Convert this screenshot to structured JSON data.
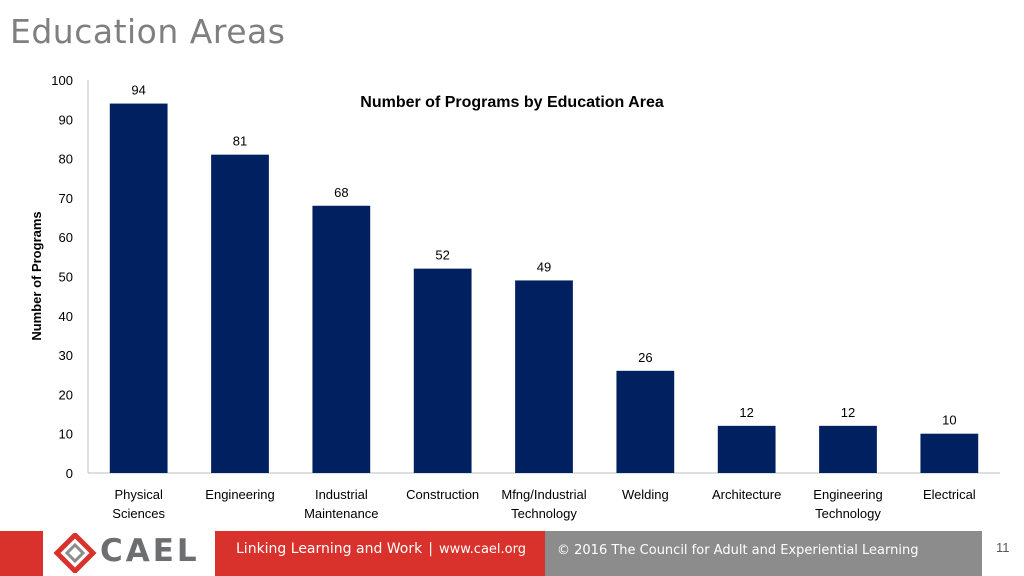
{
  "slide": {
    "title": "Education Areas",
    "page_number": "11"
  },
  "footer": {
    "logo_text": "CAEL",
    "tagline": "Linking Learning and Work",
    "separator": "|",
    "url": "www.cael.org",
    "copyright": "© 2016 The Council for Adult and Experiential Learning"
  },
  "colors": {
    "bar": "#002060",
    "brand_red": "#d9312b",
    "footer_grey": "#8c8c8c",
    "title_grey": "#7f7f7f"
  },
  "chart_data": {
    "type": "bar",
    "title": "Number of Programs by Education Area",
    "ylabel": "Number of Programs",
    "xlabel": "",
    "ylim": [
      0,
      100
    ],
    "yticks": [
      0,
      10,
      20,
      30,
      40,
      50,
      60,
      70,
      80,
      90,
      100
    ],
    "categories": [
      [
        "Physical",
        "Sciences"
      ],
      [
        "Engineering"
      ],
      [
        "Industrial",
        "Maintenance"
      ],
      [
        "Construction"
      ],
      [
        "Mfng/Industrial",
        "Technology"
      ],
      [
        "Welding"
      ],
      [
        "Architecture"
      ],
      [
        "Engineering",
        "Technology"
      ],
      [
        "Electrical"
      ]
    ],
    "values": [
      94,
      81,
      68,
      52,
      49,
      26,
      12,
      12,
      10
    ],
    "data_labels": true,
    "grid": false,
    "legend": "none"
  }
}
